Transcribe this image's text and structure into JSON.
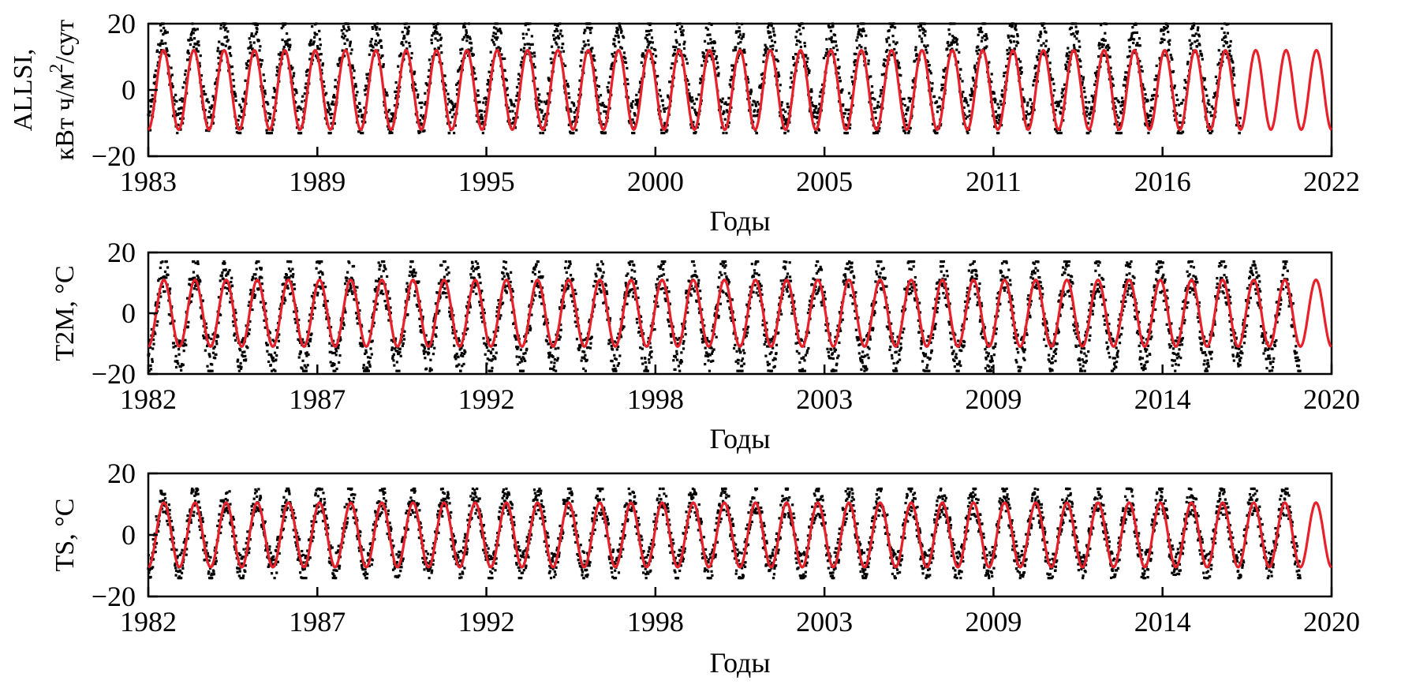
{
  "chart_data": [
    {
      "type": "scatter",
      "ylabel": "ALLSI,",
      "ylabel_line2": "кВт ч/м",
      "ylabel_sup": "2",
      "ylabel_tail": "/сут",
      "xlabel": "Годы",
      "ylim": [
        -20,
        20
      ],
      "yticks": [
        "20",
        "0",
        "−20"
      ],
      "xlim": [
        1983,
        2022
      ],
      "xticks": [
        "1983",
        "1989",
        "1995",
        "2000",
        "2005",
        "2011",
        "2016",
        "2022"
      ],
      "observed_end_year": 2019,
      "series": [
        {
          "role": "observed",
          "color": "#000000",
          "approx_range": [
            -13,
            20
          ],
          "seasonal_period_years": 1
        },
        {
          "role": "fitted",
          "color": "#e8202a",
          "amplitude": 12,
          "offset": 0,
          "seasonal_period_years": 1
        }
      ]
    },
    {
      "type": "scatter",
      "ylabel": "T2M, °C",
      "xlabel": "Годы",
      "ylim": [
        -20,
        20
      ],
      "yticks": [
        "20",
        "0",
        "−20"
      ],
      "xlim": [
        1982,
        2020
      ],
      "xticks": [
        "1982",
        "1987",
        "1992",
        "1998",
        "2003",
        "2009",
        "2014",
        "2020"
      ],
      "observed_end_year": 2019,
      "series": [
        {
          "role": "observed",
          "color": "#000000",
          "approx_range": [
            -19,
            17
          ],
          "seasonal_period_years": 1
        },
        {
          "role": "fitted",
          "color": "#e8202a",
          "amplitude": 11,
          "offset": 0,
          "seasonal_period_years": 1
        }
      ]
    },
    {
      "type": "scatter",
      "ylabel": "TS, °C",
      "xlabel": "Годы",
      "ylim": [
        -20,
        20
      ],
      "yticks": [
        "20",
        "0",
        "−20"
      ],
      "xlim": [
        1982,
        2020
      ],
      "xticks": [
        "1982",
        "1987",
        "1992",
        "1998",
        "2003",
        "2009",
        "2014",
        "2020"
      ],
      "observed_end_year": 2019,
      "series": [
        {
          "role": "observed",
          "color": "#000000",
          "approx_range": [
            -14,
            15
          ],
          "seasonal_period_years": 1
        },
        {
          "role": "fitted",
          "color": "#e8202a",
          "amplitude": 10.5,
          "offset": 0,
          "seasonal_period_years": 1
        }
      ]
    }
  ]
}
